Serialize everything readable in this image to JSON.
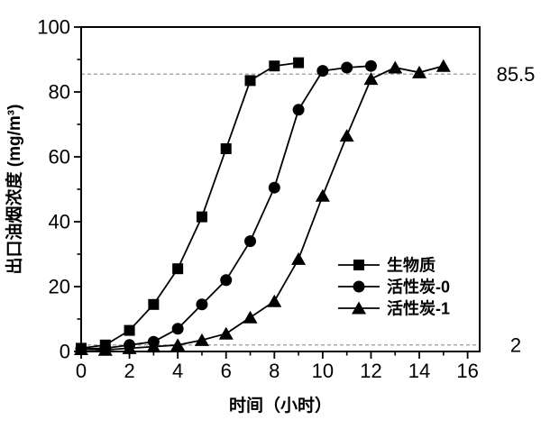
{
  "chart_data": {
    "type": "line",
    "title": "",
    "xlabel": "时间（小时）",
    "ylabel": "出口油烟浓度 (mg/m³)",
    "xlim": [
      0,
      16.5
    ],
    "ylim": [
      0,
      100
    ],
    "x_major_ticks": [
      0,
      2,
      4,
      6,
      8,
      10,
      12,
      14,
      16
    ],
    "x_minor_ticks": [
      1,
      3,
      5,
      7,
      9,
      11,
      13,
      15
    ],
    "y_major_ticks": [
      0,
      20,
      40,
      60,
      80,
      100
    ],
    "y_minor_ticks": [
      10,
      30,
      50,
      70,
      90
    ],
    "grid": false,
    "legend_position": "inside-right-middle",
    "line_color": "#000000",
    "background_color": "#ffffff",
    "ref_line_color": "#8c8c8c",
    "ref_lines": [
      {
        "value": 85.5,
        "label": "85.5"
      },
      {
        "value": 2,
        "label": "2"
      }
    ],
    "series": [
      {
        "name": "生物质",
        "marker": "square",
        "x": [
          0,
          1,
          2,
          3,
          4,
          5,
          6,
          7,
          8,
          9
        ],
        "values": [
          1,
          2,
          6.5,
          14.5,
          25.5,
          41.5,
          62.5,
          83.5,
          88,
          89
        ]
      },
      {
        "name": "活性炭-0",
        "marker": "circle",
        "x": [
          0,
          1,
          2,
          3,
          4,
          5,
          6,
          7,
          8,
          9,
          10,
          11,
          12
        ],
        "values": [
          0.8,
          1,
          2,
          3,
          7,
          14.5,
          22,
          34,
          50.5,
          74.5,
          86.5,
          87.5,
          88
        ]
      },
      {
        "name": "活性炭-1",
        "marker": "triangle",
        "x": [
          0,
          1,
          2,
          3,
          4,
          5,
          6,
          7,
          8,
          9,
          10,
          11,
          12,
          13,
          14,
          15
        ],
        "values": [
          0.7,
          0.5,
          1,
          1.5,
          2,
          3.5,
          5.5,
          10.5,
          15.5,
          28.5,
          48,
          66.5,
          84,
          87.5,
          86,
          88
        ]
      }
    ]
  }
}
